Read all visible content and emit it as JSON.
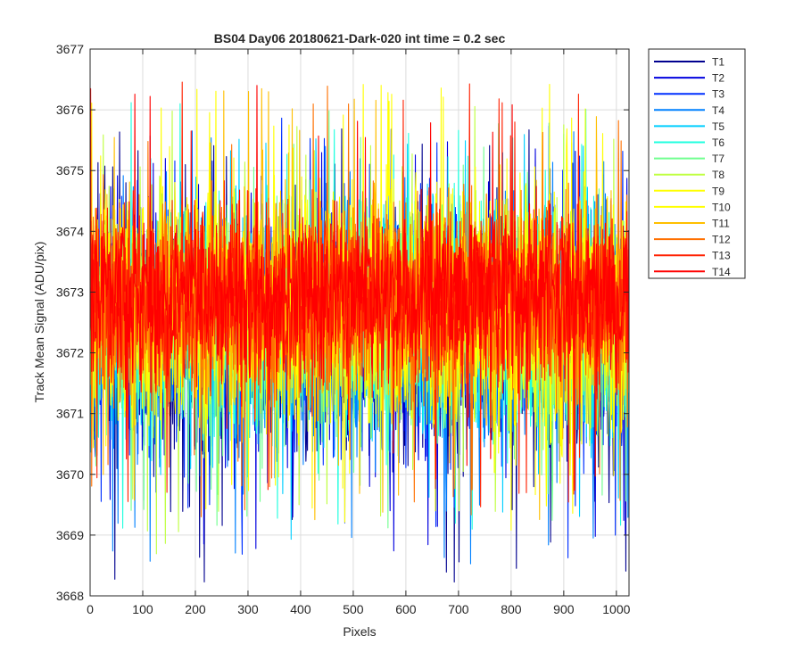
{
  "chart_data": {
    "type": "line",
    "title": "BS04 Day06 20180621-Dark-020 int time = 0.2 sec",
    "xlabel": "Pixels",
    "ylabel": "Track Mean Signal (ADU/pix)",
    "xlim": [
      0,
      1024
    ],
    "ylim": [
      3668,
      3677
    ],
    "xticks": [
      "0",
      "100",
      "200",
      "300",
      "400",
      "500",
      "600",
      "700",
      "800",
      "900",
      "1000"
    ],
    "yticks": [
      "3668",
      "3669",
      "3670",
      "3671",
      "3672",
      "3673",
      "3674",
      "3675",
      "3676",
      "3677"
    ],
    "grid": true,
    "legend_position": "outside-top-right",
    "n_points": 1024,
    "mean_level": 3672.8,
    "series": [
      {
        "name": "T1",
        "color": "#00008f",
        "mean": 3672.2,
        "sd": 1.0,
        "min": 3668.2,
        "max": 3675.7
      },
      {
        "name": "T2",
        "color": "#0000df",
        "mean": 3672.3,
        "sd": 1.0,
        "min": 3668.5,
        "max": 3675.8
      },
      {
        "name": "T3",
        "color": "#0030ff",
        "mean": 3672.3,
        "sd": 0.95,
        "min": 3668.6,
        "max": 3675.9
      },
      {
        "name": "T4",
        "color": "#0080ff",
        "mean": 3672.4,
        "sd": 0.95,
        "min": 3668.5,
        "max": 3675.9
      },
      {
        "name": "T5",
        "color": "#00cfff",
        "mean": 3672.45,
        "sd": 0.9,
        "min": 3668.8,
        "max": 3675.9
      },
      {
        "name": "T6",
        "color": "#20ffdf",
        "mean": 3672.5,
        "sd": 0.9,
        "min": 3668.9,
        "max": 3676.2
      },
      {
        "name": "T7",
        "color": "#70ff8f",
        "mean": 3672.55,
        "sd": 0.9,
        "min": 3669.0,
        "max": 3676.1
      },
      {
        "name": "T8",
        "color": "#bfff40",
        "mean": 3672.6,
        "sd": 0.9,
        "min": 3668.5,
        "max": 3676.1
      },
      {
        "name": "T9",
        "color": "#ffff00",
        "mean": 3672.7,
        "sd": 0.9,
        "min": 3668.9,
        "max": 3676.5
      },
      {
        "name": "T10",
        "color": "#ffff00",
        "mean": 3672.75,
        "sd": 0.9,
        "min": 3669.1,
        "max": 3676.5
      },
      {
        "name": "T11",
        "color": "#ffbf00",
        "mean": 3672.8,
        "sd": 0.85,
        "min": 3669.2,
        "max": 3676.4
      },
      {
        "name": "T12",
        "color": "#ff7000",
        "mean": 3672.85,
        "sd": 0.8,
        "min": 3669.3,
        "max": 3676.4
      },
      {
        "name": "T13",
        "color": "#ff2000",
        "mean": 3672.9,
        "sd": 0.75,
        "min": 3669.3,
        "max": 3676.5
      },
      {
        "name": "T14",
        "color": "#ff0000",
        "mean": 3672.95,
        "sd": 0.7,
        "min": 3669.2,
        "max": 3676.5
      }
    ]
  }
}
